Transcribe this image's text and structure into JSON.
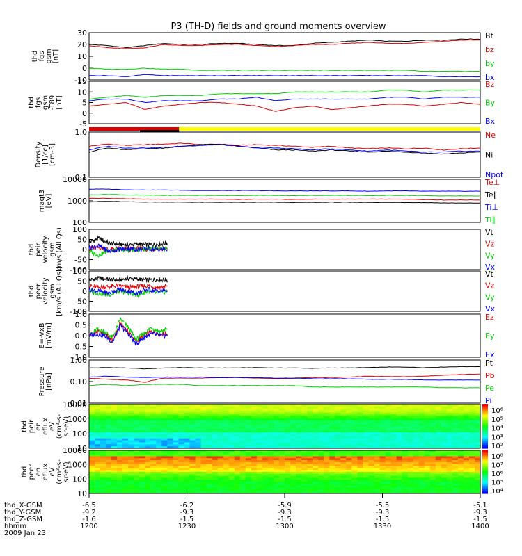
{
  "title": "P3 (TH-D) fields and ground moments overview",
  "colors": {
    "black": "#000000",
    "red": "#e00000",
    "green": "#00d000",
    "blue": "#0000ff",
    "yellow": "#ffff00"
  },
  "chart_data": [
    {
      "type": "line",
      "id": "p1",
      "ylabel": [
        "thd",
        "fgs",
        "gsm",
        "[nT]"
      ],
      "yticks": [
        "30",
        "20",
        "10",
        "0",
        "-10"
      ],
      "ylim": [
        -13,
        31
      ],
      "series": [
        {
          "name": "Bt",
          "color": "black",
          "values": [
            20,
            19,
            17,
            19,
            21,
            20,
            20,
            21,
            21,
            20,
            19,
            19,
            21,
            22,
            23,
            24,
            23,
            23,
            24,
            24,
            25,
            25
          ]
        },
        {
          "name": "bz",
          "color": "red",
          "values": [
            19,
            17,
            16,
            17,
            20,
            19,
            19,
            20,
            20,
            19,
            18,
            19,
            20,
            20,
            21,
            22,
            21,
            21,
            22,
            23,
            24,
            24
          ]
        },
        {
          "name": "by",
          "color": "green",
          "values": [
            -2,
            -3,
            -3,
            -2,
            -3,
            -3,
            -4,
            -4,
            -4,
            -4,
            -4,
            -4,
            -4,
            -4,
            -4,
            -4,
            -4,
            -4,
            -5,
            -5,
            -5,
            -5
          ]
        },
        {
          "name": "bx",
          "color": "blue",
          "values": [
            -9,
            -9,
            -10,
            -8,
            -9,
            -9,
            -9,
            -9,
            -9,
            -9,
            -9,
            -9,
            -9,
            -9,
            -9,
            -9,
            -9,
            -9,
            -9,
            -10,
            -10,
            -10
          ]
        }
      ]
    },
    {
      "type": "line",
      "id": "p2",
      "ylabel": [
        "thd",
        "fgs",
        "gsm",
        "-T89",
        "[nT]"
      ],
      "yticks": [
        "15",
        "10",
        "5",
        "0",
        "-5"
      ],
      "ylim": [
        -7,
        17
      ],
      "series": [
        {
          "name": "Bz",
          "color": "red",
          "values": [
            3,
            4,
            5,
            1,
            3,
            4,
            5,
            5,
            4,
            3,
            0,
            2,
            3,
            1,
            2,
            3,
            4,
            4,
            3,
            4,
            5,
            4
          ]
        },
        {
          "name": "By",
          "color": "green",
          "values": [
            7,
            8,
            9,
            8,
            9,
            9,
            9,
            10,
            10,
            10,
            10,
            11,
            11,
            11,
            11,
            11,
            12,
            12,
            11,
            12,
            12,
            12
          ]
        },
        {
          "name": "Bx",
          "color": "blue",
          "values": [
            6,
            7,
            7,
            5,
            6,
            6,
            6,
            7,
            7,
            8,
            6,
            7,
            7,
            7,
            7,
            7,
            8,
            8,
            7,
            8,
            8,
            8
          ]
        }
      ]
    },
    {
      "type": "line",
      "id": "p3",
      "ylabel": [
        "Density",
        "[1/cc]",
        "[cm-3]"
      ],
      "yticks": [
        "1.0",
        "0.1"
      ],
      "ylim": [
        0.1,
        1.2
      ],
      "log": true,
      "series": [
        {
          "name": "Ne",
          "color": "red",
          "values": [
            0.55,
            0.62,
            0.58,
            0.6,
            0.62,
            0.65,
            0.6,
            0.62,
            0.58,
            0.6,
            0.58,
            0.55,
            0.52,
            0.55,
            0.5,
            0.48,
            0.5,
            0.48,
            0.5,
            0.45,
            0.48,
            0.5
          ]
        },
        {
          "name": "Ni",
          "color": "black",
          "values": [
            0.4,
            0.5,
            0.45,
            0.48,
            0.5,
            0.55,
            0.6,
            0.62,
            0.55,
            0.5,
            0.45,
            0.45,
            0.42,
            0.45,
            0.42,
            0.4,
            0.42,
            0.4,
            0.38,
            0.36,
            0.38,
            0.4
          ]
        },
        {
          "name": "Npot",
          "color": "blue",
          "values": [
            0.45,
            0.55,
            0.5,
            0.5,
            0.52,
            0.55,
            0.58,
            0.6,
            0.55,
            0.5,
            0.5,
            0.48,
            0.45,
            0.48,
            0.45,
            0.42,
            0.45,
            0.42,
            0.4,
            0.4,
            0.42,
            0.42
          ]
        }
      ]
    },
    {
      "type": "line",
      "id": "p4",
      "ylabel": [
        "magt3",
        "[eV]"
      ],
      "yticks": [
        "10000",
        "1000",
        "100"
      ],
      "ylim": [
        100,
        10000
      ],
      "log": true,
      "series": [
        {
          "name": "Te⊥",
          "color": "red",
          "values": [
            1300,
            1300,
            1250,
            1200,
            1200,
            1200,
            1200,
            1200,
            1150,
            1200,
            1200,
            1150,
            1200,
            1200,
            1200,
            1200,
            1200,
            1200,
            1150,
            1100,
            1100,
            1100
          ]
        },
        {
          "name": "Te∥",
          "color": "black",
          "values": [
            900,
            950,
            900,
            880,
            880,
            870,
            860,
            860,
            850,
            860,
            860,
            840,
            850,
            860,
            850,
            850,
            840,
            840,
            830,
            800,
            790,
            780
          ]
        },
        {
          "name": "Ti⊥",
          "color": "blue",
          "values": [
            3500,
            3500,
            3300,
            3200,
            3200,
            3100,
            3000,
            3000,
            3000,
            3000,
            2900,
            2900,
            2900,
            2900,
            2900,
            2800,
            2900,
            2900,
            2800,
            2800,
            2800,
            2800
          ]
        },
        {
          "name": "Ti∥",
          "color": "green",
          "values": [
            1900,
            2000,
            1900,
            1850,
            1800,
            1800,
            1800,
            1800,
            1750,
            1800,
            1800,
            1750,
            1800,
            1800,
            1800,
            1750,
            1800,
            1800,
            1750,
            1700,
            1700,
            1700
          ]
        }
      ]
    },
    {
      "type": "line",
      "id": "p5",
      "ylabel": [
        "thd",
        "peir",
        "velocity",
        "gsm",
        "km/s (All Qs)"
      ],
      "yticks": [
        "100",
        "50",
        "0",
        "-50",
        "-100"
      ],
      "ylim": [
        -110,
        110
      ],
      "series": [
        {
          "name": "Vt",
          "color": "black",
          "values": [
            40,
            60,
            35,
            30,
            25,
            30,
            25,
            30,
            35
          ]
        },
        {
          "name": "Vz",
          "color": "red",
          "values": [
            5,
            10,
            0,
            5,
            0,
            5,
            0,
            5,
            0
          ]
        },
        {
          "name": "Vy",
          "color": "green",
          "values": [
            -10,
            -30,
            -5,
            0,
            -5,
            0,
            5,
            0,
            5
          ]
        },
        {
          "name": "Vx",
          "color": "blue",
          "values": [
            10,
            20,
            -10,
            0,
            5,
            0,
            5,
            0,
            0
          ]
        }
      ]
    },
    {
      "type": "line",
      "id": "p6",
      "ylabel": [
        "thd",
        "peer",
        "velocity",
        "gsm",
        "[km/s (All Qs)]"
      ],
      "yticks": [
        "100",
        "50",
        "0",
        "-50",
        "-100"
      ],
      "ylim": [
        -110,
        110
      ],
      "series": [
        {
          "name": "Vt",
          "color": "black",
          "values": [
            60,
            70,
            65,
            60,
            70,
            65,
            60,
            65,
            60
          ]
        },
        {
          "name": "Vz",
          "color": "red",
          "values": [
            30,
            20,
            25,
            30,
            20,
            25,
            30,
            20,
            25
          ]
        },
        {
          "name": "Vy",
          "color": "green",
          "values": [
            0,
            -10,
            -20,
            0,
            -10,
            -20,
            0,
            -10,
            0
          ]
        },
        {
          "name": "Vx",
          "color": "blue",
          "values": [
            10,
            0,
            -10,
            10,
            0,
            -10,
            10,
            0,
            5
          ]
        }
      ]
    },
    {
      "type": "line",
      "id": "p7",
      "ylabel": [
        "E=-VxB",
        "[mV/m]"
      ],
      "yticks": [
        "1.0",
        "0.5",
        "0.0",
        "-0.5",
        "-1.0"
      ],
      "ylim": [
        -1.05,
        1.05
      ],
      "series": [
        {
          "name": "Ez",
          "color": "red",
          "values": [
            0,
            0.2,
            0.1,
            -0.2,
            0.6,
            0.2,
            -0.3,
            0,
            0.2,
            0.1,
            0.1
          ]
        },
        {
          "name": "Ey",
          "color": "green",
          "values": [
            0,
            0.3,
            0.2,
            -0.1,
            0.8,
            0.4,
            -0.2,
            0.1,
            0.4,
            0.2,
            0.3
          ]
        },
        {
          "name": "Ex",
          "color": "blue",
          "values": [
            0,
            0.1,
            0,
            -0.3,
            0.5,
            0.1,
            -0.4,
            -0.1,
            0.1,
            0,
            0
          ]
        }
      ]
    },
    {
      "type": "line",
      "id": "p8",
      "ylabel": [
        "Pressure",
        "[nPa]"
      ],
      "yticks": [
        "1.00",
        "0.10",
        "0.01"
      ],
      "ylim": [
        0.01,
        1.2
      ],
      "log": true,
      "series": [
        {
          "name": "Pt",
          "color": "black",
          "values": [
            0.5,
            0.52,
            0.5,
            0.45,
            0.5,
            0.52,
            0.5,
            0.5,
            0.5,
            0.52,
            0.5,
            0.5,
            0.48,
            0.5,
            0.5,
            0.52,
            0.55,
            0.55,
            0.52,
            0.55,
            0.58,
            0.58
          ]
        },
        {
          "name": "Pb",
          "color": "red",
          "values": [
            0.16,
            0.14,
            0.13,
            0.1,
            0.16,
            0.16,
            0.16,
            0.17,
            0.17,
            0.16,
            0.15,
            0.16,
            0.17,
            0.17,
            0.18,
            0.2,
            0.19,
            0.19,
            0.2,
            0.22,
            0.24,
            0.25
          ]
        },
        {
          "name": "Pe",
          "color": "green",
          "values": [
            0.07,
            0.08,
            0.07,
            0.08,
            0.08,
            0.08,
            0.07,
            0.07,
            0.07,
            0.07,
            0.07,
            0.07,
            0.06,
            0.06,
            0.06,
            0.06,
            0.06,
            0.06,
            0.06,
            0.055,
            0.055,
            0.055
          ]
        },
        {
          "name": "Pi",
          "color": "blue",
          "values": [
            0.18,
            0.2,
            0.18,
            0.17,
            0.18,
            0.18,
            0.18,
            0.17,
            0.17,
            0.17,
            0.16,
            0.16,
            0.15,
            0.15,
            0.15,
            0.14,
            0.14,
            0.14,
            0.13,
            0.13,
            0.13,
            0.13
          ]
        }
      ]
    },
    {
      "type": "heatmap",
      "id": "p9",
      "ylabel": [
        "thd",
        "peir",
        "en",
        "eflux",
        "eV",
        "(cm²-s-",
        "sr-eV)"
      ],
      "yticks": [
        "10000",
        "1000",
        "100",
        "10"
      ],
      "colorbar": {
        "labels": [
          "10⁶",
          "10⁵",
          "10⁴",
          "10³",
          "10²"
        ]
      }
    },
    {
      "type": "heatmap",
      "id": "p10",
      "ylabel": [
        "thd",
        "peer",
        "en",
        "eflux",
        "eV",
        "(cm²-s-",
        "sr-eV)"
      ],
      "yticks": [
        "10000",
        "1000",
        "100",
        "10"
      ],
      "colorbar": {
        "labels": [
          "10⁸",
          "10⁷",
          "10⁶",
          "10⁵",
          "10⁴"
        ]
      }
    }
  ],
  "status_bar": {
    "segments": [
      {
        "color": "red",
        "start": "1200",
        "end": "1230"
      },
      {
        "color": "black",
        "start": "1215",
        "end": "1230"
      },
      {
        "color": "yellow",
        "start": "1230",
        "end": "1400"
      }
    ]
  },
  "xaxis": {
    "rows": [
      {
        "label": "thd_X-GSM",
        "values": [
          "-6.5",
          "-6.2",
          "-5.9",
          "-5.5",
          "-5.1"
        ]
      },
      {
        "label": "thd_Y-GSM",
        "values": [
          "-9.2",
          "-9.3",
          "-9.3",
          "-9.3",
          "-9.3"
        ]
      },
      {
        "label": "thd_Z-GSM",
        "values": [
          "-1.6",
          "-1.5",
          "-1.5",
          "-1.5",
          "-1.5"
        ]
      },
      {
        "label": "hhmm",
        "values": [
          "1200",
          "1230",
          "1300",
          "1330",
          "1400"
        ]
      }
    ],
    "date": "2009 Jan 23"
  }
}
